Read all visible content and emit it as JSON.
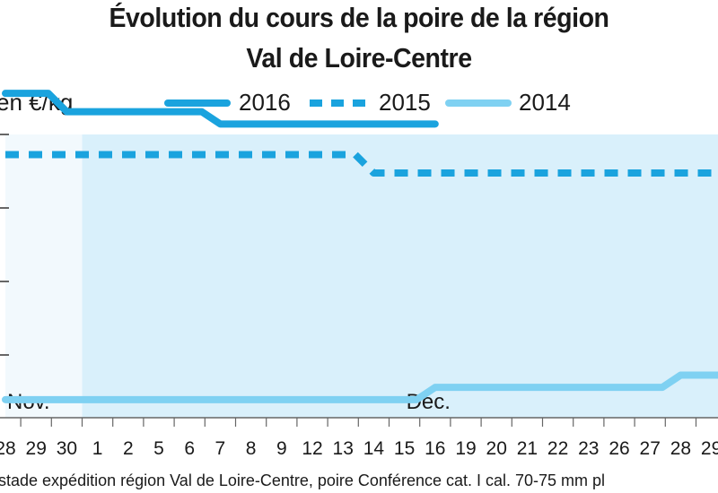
{
  "chart_data": {
    "type": "line",
    "title_line1": "Évolution du cours de la poire de la région",
    "title_line2": "Val de Loire-Centre",
    "ylabel": "en €/kg",
    "categories": [
      "28",
      "29",
      "30",
      "1",
      "2",
      "5",
      "6",
      "7",
      "8",
      "9",
      "12",
      "13",
      "14",
      "15",
      "16",
      "19",
      "20",
      "21",
      "22",
      "23",
      "26",
      "27",
      "28",
      "29"
    ],
    "month_labels": [
      {
        "label": "Nov.",
        "category_index": 0
      },
      {
        "label": "Déc.",
        "category_index": 13
      }
    ],
    "series": [
      {
        "name": "2016",
        "style": "solid",
        "color": "#1aa3de",
        "values": [
          1.55,
          1.55,
          1.52,
          1.52,
          1.52,
          1.52,
          1.52,
          1.5,
          1.5,
          1.5,
          1.5,
          1.5,
          1.5,
          1.5,
          1.5,
          null,
          null,
          null,
          null,
          null,
          null,
          null,
          null,
          null
        ]
      },
      {
        "name": "2015",
        "style": "dashed",
        "color": "#1aa3de",
        "values": [
          1.45,
          1.45,
          1.45,
          1.45,
          1.45,
          1.45,
          1.45,
          1.45,
          1.45,
          1.45,
          1.45,
          1.45,
          1.42,
          1.42,
          1.42,
          1.42,
          1.42,
          1.42,
          1.42,
          1.42,
          1.42,
          1.42,
          1.42,
          1.42
        ]
      },
      {
        "name": "2014",
        "style": "solid",
        "color": "#7fd1f2",
        "values": [
          1.05,
          1.05,
          1.05,
          1.05,
          1.05,
          1.05,
          1.05,
          1.05,
          1.05,
          1.05,
          1.05,
          1.05,
          1.05,
          1.05,
          1.07,
          1.07,
          1.07,
          1.07,
          1.07,
          1.07,
          1.07,
          1.07,
          1.09,
          1.09
        ]
      }
    ],
    "ylim": [
      1.0,
      1.6
    ],
    "shaded_region_start_index": 3,
    "grid": false,
    "legend_position": "top",
    "footnote": "stade expédition région Val de Loire-Centre, poire Conférence cat. I cal. 70-75 mm pl"
  },
  "colors": {
    "shade": "#d9f0fb",
    "shade_light": "#f2f9fd",
    "axis": "#666666"
  }
}
